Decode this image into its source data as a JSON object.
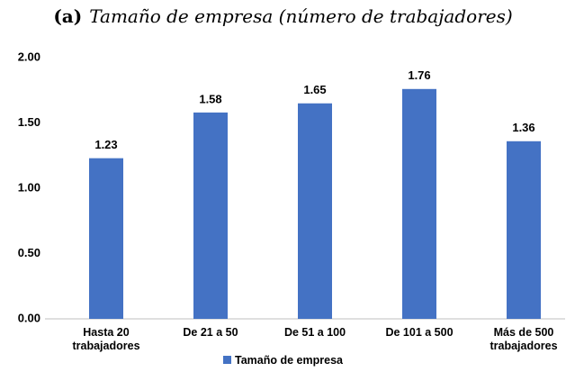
{
  "chart_data": {
    "type": "bar",
    "label": "(a)",
    "title": "Tamaño de empresa (número de trabajadores)",
    "categories": [
      "Hasta 20 trabajadores",
      "De 21 a 50",
      "De 51 a 100",
      "De 101 a 500",
      "Más de 500 trabajadores"
    ],
    "series": [
      {
        "name": "Tamaño de empresa",
        "color": "#4472c4",
        "values": [
          1.23,
          1.58,
          1.65,
          1.76,
          1.36
        ]
      }
    ],
    "ylim": [
      0,
      2
    ],
    "yticks": [
      {
        "value": 0,
        "label": "0.00"
      },
      {
        "value": 0.5,
        "label": "0.50"
      },
      {
        "value": 1,
        "label": "1.00"
      },
      {
        "value": 1.5,
        "label": "1.50"
      },
      {
        "value": 2,
        "label": "2.00"
      }
    ],
    "grid": false,
    "legend": "bottom"
  }
}
